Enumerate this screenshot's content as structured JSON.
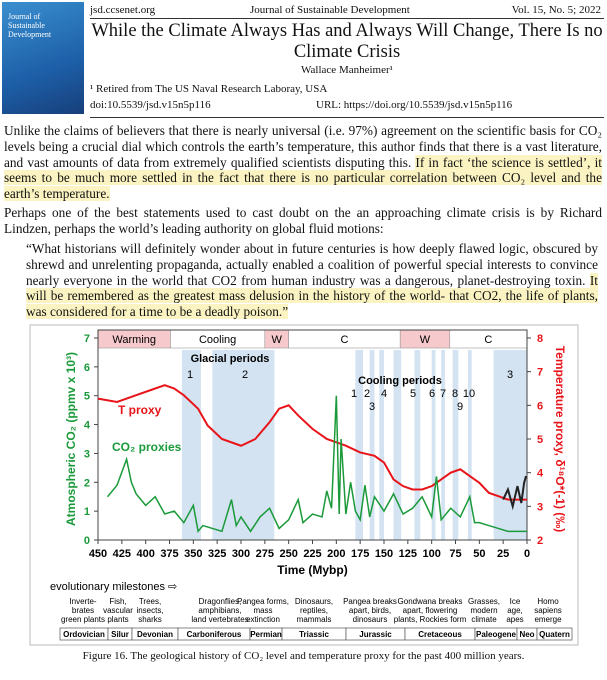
{
  "cover": {
    "title": "Journal of Sustainable Development"
  },
  "header": {
    "site": "jsd.ccsenet.org",
    "journal": "Journal of Sustainable Development",
    "volume": "Vol. 15, No. 5; 2022",
    "title_lines": [
      "While the Climate Always Has and Always Will Change, There Is no",
      "Climate Crisis"
    ],
    "author": "Wallace Manheimer¹",
    "affiliation": "¹ Retired from The US Naval Research Laboray, USA",
    "doi": "doi:10.5539/jsd.v15n5p116",
    "url": "URL: https://doi.org/10.5539/jsd.v15n5p116"
  },
  "body": {
    "p1": {
      "text": "Unlike the claims of believers that there is nearly universal (i.e. 97%) agreement on the scientific basis for CO₂ levels being a crucial dial which controls the earth’s temperature, this author finds that there is a vast literature, and vast amounts of data from extremely qualified scientists disputing this. ",
      "highlight": "If in fact ‘the science is settled’, it seems to be much more settled in the fact that there is no particular correlation between CO₂ level and the earth’s temperature."
    },
    "p2": "Perhaps one of the best statements used to cast doubt on the an approaching climate crisis is by Richard Lindzen, perhaps the world’s leading authority on global fluid motions:",
    "quote": {
      "text": "“What historians will definitely wonder about in future centuries is how deeply flawed logic, obscured by shrewd and unrelenting propaganda, actually enabled a coalition of powerful special interests to convince nearly everyone in the world that CO2 from human industry was a dangerous, planet-destroying toxin. ",
      "highlight": "It will be remembered as the greatest mass delusion in the history of the world- that CO2, the life of plants, was considered for a time to be a deadly poison.”"
    }
  },
  "chart_data": {
    "type": "line",
    "xlabel": "Time (Mybp)",
    "ylabel": "Atmospheric CO₂ (ppmv x 10³)",
    "y2label": "Temperature proxy, δ¹⁸O*(-1) (‰)",
    "xlim": [
      450,
      0
    ],
    "xticks": [
      450,
      425,
      400,
      375,
      350,
      325,
      300,
      275,
      250,
      225,
      200,
      175,
      150,
      125,
      100,
      75,
      50,
      25,
      0
    ],
    "ylim": [
      0,
      7
    ],
    "yticks": [
      0,
      1,
      2,
      3,
      4,
      5,
      6,
      7
    ],
    "ycolor": "#1a9a3a",
    "y2lim": [
      2,
      8
    ],
    "y2ticks": [
      2,
      3,
      4,
      5,
      6,
      7,
      8
    ],
    "y2color": "#e8141a",
    "series": [
      {
        "name": "T proxy",
        "color": "#e8141a",
        "axis": "y2",
        "x": [
          450,
          430,
          410,
          390,
          380,
          370,
          360,
          345,
          335,
          320,
          300,
          285,
          270,
          260,
          250,
          240,
          225,
          210,
          200,
          190,
          175,
          160,
          150,
          140,
          130,
          120,
          110,
          100,
          90,
          80,
          70,
          60,
          50,
          40,
          30,
          20,
          10,
          0
        ],
        "values": [
          6.2,
          6.1,
          6.3,
          6.5,
          6.6,
          6.5,
          6.3,
          5.9,
          5.4,
          5.0,
          4.8,
          5.0,
          5.5,
          5.9,
          6.0,
          5.7,
          5.3,
          5.0,
          4.9,
          4.8,
          4.6,
          4.5,
          4.3,
          3.8,
          3.6,
          3.5,
          3.5,
          3.6,
          3.8,
          4.0,
          4.1,
          3.9,
          3.7,
          3.4,
          3.3,
          3.2,
          3.2,
          3.2
        ]
      },
      {
        "name": "CO₂ proxies",
        "color": "#1a9a3a",
        "x": [
          440,
          430,
          420,
          415,
          410,
          400,
          390,
          380,
          370,
          360,
          350,
          345,
          340,
          330,
          320,
          310,
          305,
          300,
          290,
          280,
          270,
          260,
          250,
          240,
          235,
          225,
          215,
          210,
          205,
          200,
          197,
          195,
          190,
          185,
          180,
          175,
          170,
          165,
          160,
          150,
          140,
          130,
          120,
          110,
          100,
          95,
          90,
          80,
          70,
          60,
          55,
          50,
          40,
          30,
          20,
          10,
          0
        ],
        "values": [
          1.5,
          1.9,
          2.8,
          2.0,
          1.6,
          1.2,
          1.5,
          0.9,
          1.0,
          0.6,
          1.2,
          0.3,
          0.5,
          0.4,
          0.3,
          1.4,
          0.5,
          0.8,
          0.3,
          0.8,
          1.1,
          0.4,
          0.7,
          1.4,
          0.6,
          0.9,
          0.8,
          1.7,
          1.1,
          5.0,
          0.9,
          3.5,
          0.9,
          2.0,
          1.0,
          0.7,
          1.9,
          0.8,
          1.5,
          1.0,
          1.6,
          0.9,
          1.1,
          1.5,
          0.8,
          2.2,
          0.7,
          1.1,
          0.8,
          1.5,
          0.6,
          0.6,
          0.5,
          0.4,
          0.3,
          0.3,
          0.3
        ]
      },
      {
        "color": "#222222",
        "axis": "y2",
        "x": [
          25,
          20,
          15,
          10,
          6,
          3,
          1
        ],
        "values": [
          3.2,
          3.5,
          3.0,
          3.6,
          3.1,
          3.7,
          3.9
        ]
      }
    ],
    "bands": [
      {
        "label": "Warming",
        "from": 450,
        "to": 374,
        "color": "#f6c9cc"
      },
      {
        "label": "Cooling",
        "from": 374,
        "to": 275,
        "color": "#ffffff"
      },
      {
        "label": "W",
        "from": 275,
        "to": 250,
        "color": "#f6c9cc"
      },
      {
        "label": "C",
        "from": 250,
        "to": 133,
        "color": "#ffffff"
      },
      {
        "label": "W",
        "from": 133,
        "to": 81,
        "color": "#f6c9cc"
      },
      {
        "label": "C",
        "from": 81,
        "to": 0,
        "color": "#ffffff"
      }
    ],
    "shaded": [
      [
        362,
        342
      ],
      [
        330,
        265
      ],
      [
        180,
        172
      ],
      [
        165,
        160
      ],
      [
        155,
        150
      ],
      [
        140,
        132
      ],
      [
        118,
        112
      ],
      [
        100,
        96
      ],
      [
        90,
        86
      ],
      [
        78,
        72
      ],
      [
        62,
        58
      ],
      [
        35,
        0
      ]
    ],
    "shade_color": "#c9dcef",
    "annotations": [
      "Glacial periods",
      "1",
      "2",
      "Cooling periods",
      "1",
      "2",
      "3",
      "4",
      "5",
      "6",
      "7",
      "8",
      "10",
      "9",
      "3"
    ],
    "milestones_title": "evolutionary milestones ⇨",
    "milestones": [
      [
        "Inverte-",
        "brates",
        "green plants"
      ],
      [
        "Fish,",
        "vascular",
        "plants"
      ],
      [
        "Trees,",
        "insects,",
        "sharks"
      ],
      [
        "Dragonflies,",
        "amphibians,",
        "land vertebrates"
      ],
      [
        "Pangea forms,",
        "mass",
        "extinction"
      ],
      [
        "Dinosaurs,",
        "reptiles,",
        "mammals"
      ],
      [
        "Pangea breaks",
        "apart, birds,",
        "dinosaurs"
      ],
      [
        "Gondwana breaks",
        "apart, flowering",
        "plants, Rockies form"
      ],
      [
        "Grasses,",
        "modern",
        "climate"
      ],
      [
        "Ice",
        "age,",
        "apes"
      ],
      [
        "Homo",
        "sapiens",
        "emerge"
      ]
    ],
    "periods": [
      "Ordovician",
      "Silur",
      "Devonian",
      "Carboniferous",
      "Permian",
      "Triassic",
      "Jurassic",
      "Cretaceous",
      "Paleogene",
      "Neo",
      "Quatern"
    ]
  },
  "figure": {
    "caption": "Figure 16. The geological history of CO₂ level and temperature proxy for the past 400 million years."
  }
}
